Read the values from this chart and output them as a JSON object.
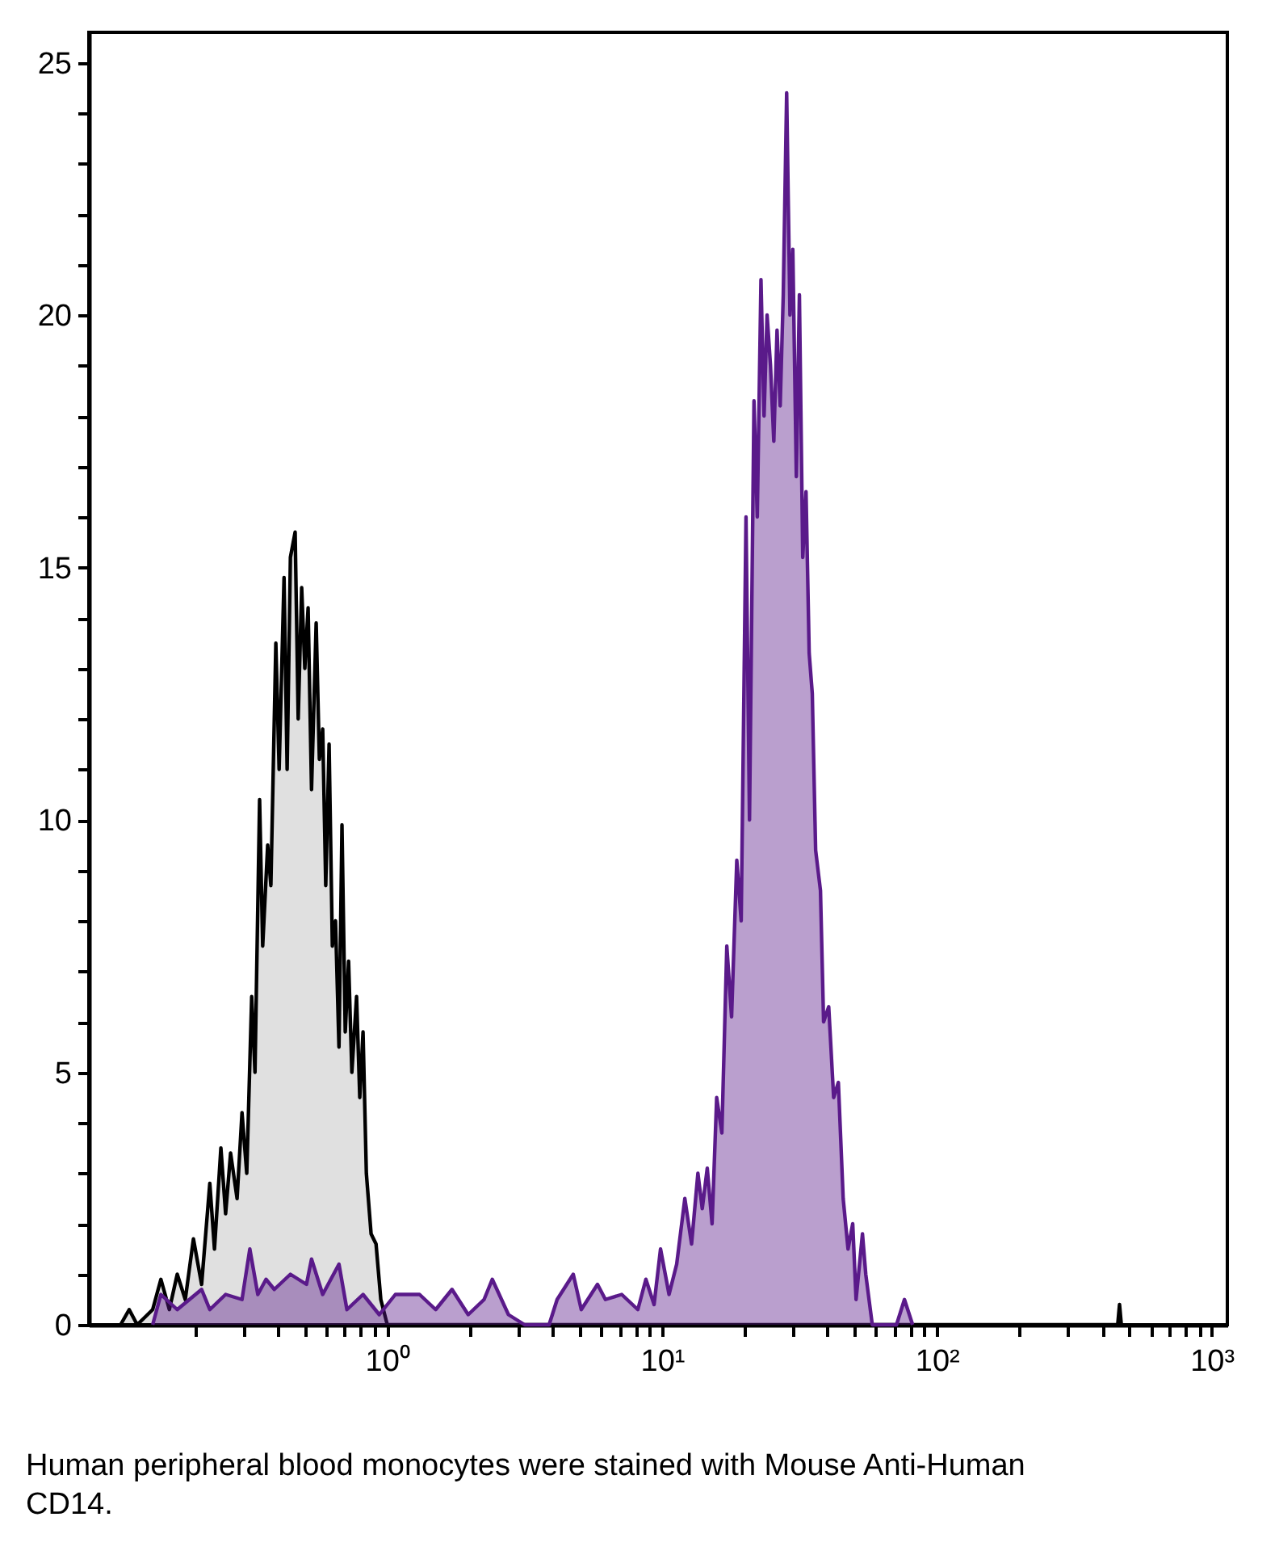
{
  "chart_data": {
    "type": "area",
    "annotations": [
      "Human peripheral blood monocytes were stained with Mouse Anti-Human CD14."
    ],
    "xlim": [
      0.082,
      1140
    ],
    "ylim": [
      0,
      25.6
    ],
    "log": "x",
    "grid": false,
    "xticks": [
      {
        "value": 0.2,
        "label": null
      },
      {
        "value": 0.3,
        "label": null
      },
      {
        "value": 0.4,
        "label": null
      },
      {
        "value": 0.5,
        "label": null
      },
      {
        "value": 0.6,
        "label": null
      },
      {
        "value": 0.7,
        "label": null
      },
      {
        "value": 0.8,
        "label": null
      },
      {
        "value": 0.9,
        "label": null
      },
      {
        "value": 1,
        "label": "10⁰"
      },
      {
        "value": 2,
        "label": null
      },
      {
        "value": 3,
        "label": null
      },
      {
        "value": 4,
        "label": null
      },
      {
        "value": 5,
        "label": null
      },
      {
        "value": 6,
        "label": null
      },
      {
        "value": 7,
        "label": null
      },
      {
        "value": 8,
        "label": null
      },
      {
        "value": 9,
        "label": null
      },
      {
        "value": 10,
        "label": "10¹"
      },
      {
        "value": 20,
        "label": null
      },
      {
        "value": 30,
        "label": null
      },
      {
        "value": 40,
        "label": null
      },
      {
        "value": 50,
        "label": null
      },
      {
        "value": 60,
        "label": null
      },
      {
        "value": 70,
        "label": null
      },
      {
        "value": 80,
        "label": null
      },
      {
        "value": 90,
        "label": null
      },
      {
        "value": 100,
        "label": "10²"
      },
      {
        "value": 200,
        "label": null
      },
      {
        "value": 300,
        "label": null
      },
      {
        "value": 400,
        "label": null
      },
      {
        "value": 500,
        "label": null
      },
      {
        "value": 600,
        "label": null
      },
      {
        "value": 700,
        "label": null
      },
      {
        "value": 800,
        "label": null
      },
      {
        "value": 900,
        "label": null
      },
      {
        "value": 1000,
        "label": "10³"
      }
    ],
    "yticks": [
      0,
      {
        "value": 1,
        "label": null
      },
      {
        "value": 2,
        "label": null
      },
      {
        "value": 3,
        "label": null
      },
      {
        "value": 4,
        "label": null
      },
      5,
      {
        "value": 6,
        "label": null
      },
      {
        "value": 7,
        "label": null
      },
      {
        "value": 8,
        "label": null
      },
      {
        "value": 9,
        "label": null
      },
      10,
      {
        "value": 11,
        "label": null
      },
      {
        "value": 12,
        "label": null
      },
      {
        "value": 13,
        "label": null
      },
      {
        "value": 14,
        "label": null
      },
      15,
      {
        "value": 16,
        "label": null
      },
      {
        "value": 17,
        "label": null
      },
      {
        "value": 18,
        "label": null
      },
      {
        "value": 19,
        "label": null
      },
      20,
      {
        "value": 21,
        "label": null
      },
      {
        "value": 22,
        "label": null
      },
      {
        "value": 23,
        "label": null
      },
      {
        "value": 24,
        "label": null
      },
      25
    ],
    "series": [
      {
        "color": "#000000",
        "x": [
          0.107,
          0.115,
          0.123,
          0.14,
          0.15,
          0.161,
          0.172,
          0.184,
          0.197,
          0.211,
          0.226,
          0.235,
          0.248,
          0.258,
          0.269,
          0.284,
          0.296,
          0.308,
          0.321,
          0.33,
          0.343,
          0.352,
          0.367,
          0.377,
          0.393,
          0.404,
          0.421,
          0.432,
          0.444,
          0.462,
          0.474,
          0.488,
          0.501,
          0.515,
          0.53,
          0.551,
          0.566,
          0.582,
          0.597,
          0.614,
          0.631,
          0.648,
          0.667,
          0.684,
          0.703,
          0.723,
          0.743,
          0.773,
          0.794,
          0.816,
          0.839,
          0.873,
          0.91,
          0.947,
          1.0,
          455,
          462,
          469
        ],
        "values": [
          0,
          0.3,
          0,
          0.3,
          0.9,
          0.3,
          1.0,
          0.5,
          1.7,
          0.8,
          2.8,
          1.5,
          3.5,
          2.2,
          3.4,
          2.5,
          4.2,
          3.0,
          6.5,
          5.0,
          10.4,
          7.5,
          9.5,
          8.7,
          13.5,
          11.0,
          14.8,
          11.0,
          15.2,
          15.7,
          12.0,
          14.6,
          13.0,
          14.2,
          10.6,
          13.9,
          11.2,
          11.8,
          8.7,
          11.5,
          7.5,
          8.0,
          5.5,
          9.9,
          5.8,
          7.2,
          5.0,
          6.5,
          4.5,
          5.8,
          3.0,
          1.8,
          1.6,
          0.5,
          0,
          0,
          0.4,
          0
        ]
      },
      {
        "color": "#5a1a8a",
        "x": [
          0.14,
          0.15,
          0.172,
          0.211,
          0.226,
          0.258,
          0.296,
          0.316,
          0.338,
          0.362,
          0.388,
          0.444,
          0.508,
          0.53,
          0.582,
          0.667,
          0.713,
          0.816,
          0.935,
          1.07,
          1.31,
          1.5,
          1.72,
          1.97,
          2.25,
          2.41,
          2.76,
          3.16,
          3.88,
          4.15,
          4.75,
          5.08,
          5.82,
          6.22,
          7.13,
          8.16,
          8.73,
          9.35,
          9.87,
          10.6,
          11.3,
          12.1,
          12.8,
          13.5,
          14.0,
          14.6,
          15.2,
          15.8,
          16.5,
          17.2,
          17.9,
          18.7,
          19.4,
          20.2,
          20.8,
          21.6,
          22.2,
          22.9,
          23.5,
          24.1,
          24.8,
          25.5,
          26.2,
          26.9,
          27.6,
          28.4,
          29.2,
          29.9,
          30.8,
          31.6,
          32.5,
          33.4,
          34.3,
          35.2,
          36.2,
          37.7,
          38.7,
          40.4,
          42.1,
          43.8,
          45.6,
          47.5,
          49.4,
          50.8,
          53.6,
          55.1,
          58.2,
          71.3,
          76.2,
          81.6
        ],
        "values": [
          0,
          0.6,
          0.3,
          0.7,
          0.3,
          0.6,
          0.5,
          1.5,
          0.6,
          0.9,
          0.7,
          1.0,
          0.8,
          1.3,
          0.6,
          1.2,
          0.3,
          0.6,
          0.2,
          0.6,
          0.6,
          0.3,
          0.7,
          0.2,
          0.5,
          0.9,
          0.2,
          0,
          0,
          0.5,
          1.0,
          0.3,
          0.8,
          0.5,
          0.6,
          0.3,
          0.9,
          0.4,
          1.5,
          0.6,
          1.2,
          2.5,
          1.6,
          3.0,
          2.3,
          3.1,
          2.0,
          4.5,
          3.8,
          7.5,
          6.1,
          9.2,
          8.0,
          16.0,
          10.0,
          18.3,
          16.0,
          20.7,
          18.0,
          20.0,
          19.0,
          17.5,
          19.7,
          18.2,
          20.4,
          24.4,
          20.0,
          21.3,
          16.8,
          20.4,
          15.2,
          16.5,
          13.3,
          12.5,
          9.4,
          8.6,
          6.0,
          6.3,
          4.5,
          4.8,
          2.5,
          1.5,
          2.0,
          0.5,
          1.8,
          1.0,
          0,
          0,
          0.5,
          0
        ]
      }
    ]
  }
}
